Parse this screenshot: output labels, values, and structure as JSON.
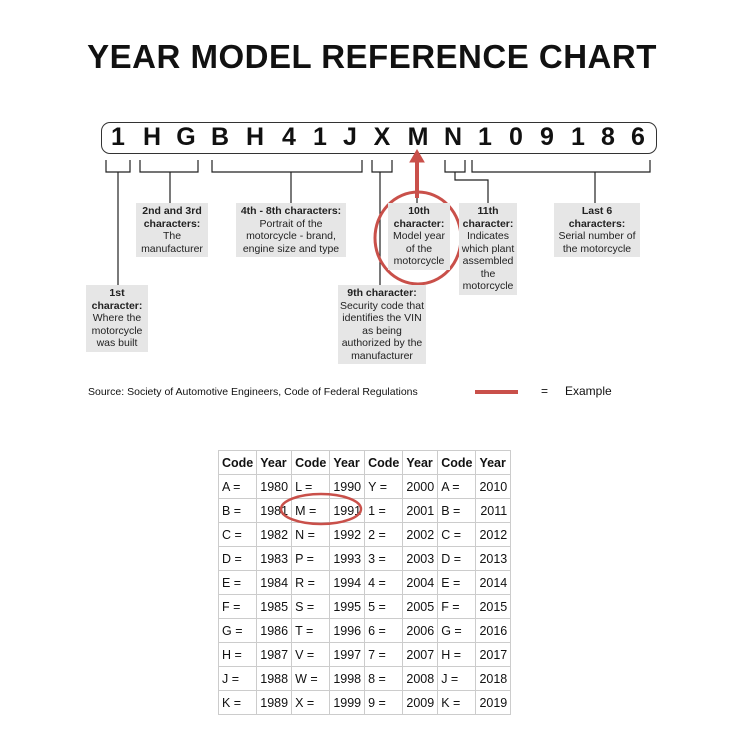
{
  "title": "YEAR MODEL REFERENCE CHART",
  "vin": [
    "1",
    "H",
    "G",
    "B",
    "H",
    "4",
    "1",
    "J",
    "X",
    "M",
    "N",
    "1",
    "0",
    "9",
    "1",
    "8",
    "6"
  ],
  "labels": {
    "first": {
      "head": "1st character:",
      "body": "Where the motorcycle was built"
    },
    "second": {
      "head": "2nd and 3rd characters:",
      "body": "The manufacturer"
    },
    "fourth": {
      "head": "4th - 8th characters:",
      "body": "Portrait of the motorcycle - brand, engine size and type"
    },
    "ninth": {
      "head": "9th character:",
      "body": "Security code that identifies the VIN as being authorized by the manufacturer"
    },
    "tenth": {
      "head": "10th character:",
      "body": "Model year of the motorcycle"
    },
    "eleventh": {
      "head": "11th character:",
      "body": "Indicates which plant assembled the motorcycle"
    },
    "last": {
      "head": "Last 6 characters:",
      "body": "Serial number of the motorcycle"
    }
  },
  "source": "Source:  Society of Automotive Engineers, Code of Federal Regulations",
  "legend": {
    "equals": "=",
    "text": "Example",
    "color": "#c9504a"
  },
  "table": {
    "headers": [
      "Code",
      "Year",
      "Code",
      "Year",
      "Code",
      "Year",
      "Code",
      "Year"
    ],
    "rows": [
      [
        "A =",
        "1980",
        "L =",
        "1990",
        "Y =",
        "2000",
        "A =",
        "2010"
      ],
      [
        "B =",
        "1981",
        "M =",
        "1991",
        "1 =",
        "2001",
        "B =",
        "2011"
      ],
      [
        "C =",
        "1982",
        "N =",
        "1992",
        "2 =",
        "2002",
        "C =",
        "2012"
      ],
      [
        "D =",
        "1983",
        "P =",
        "1993",
        "3 =",
        "2003",
        "D =",
        "2013"
      ],
      [
        "E =",
        "1984",
        "R =",
        "1994",
        "4 =",
        "2004",
        "E =",
        "2014"
      ],
      [
        "F =",
        "1985",
        "S =",
        "1995",
        "5 =",
        "2005",
        "F =",
        "2015"
      ],
      [
        "G =",
        "1986",
        "T =",
        "1996",
        "6 =",
        "2006",
        "G =",
        "2016"
      ],
      [
        "H =",
        "1987",
        "V =",
        "1997",
        "7 =",
        "2007",
        "H =",
        "2017"
      ],
      [
        "J =",
        "1988",
        "W =",
        "1998",
        "8 =",
        "2008",
        "J =",
        "2018"
      ],
      [
        "K =",
        "1989",
        "X =",
        "1999",
        "9 =",
        "2009",
        "K =",
        "2019"
      ]
    ]
  }
}
